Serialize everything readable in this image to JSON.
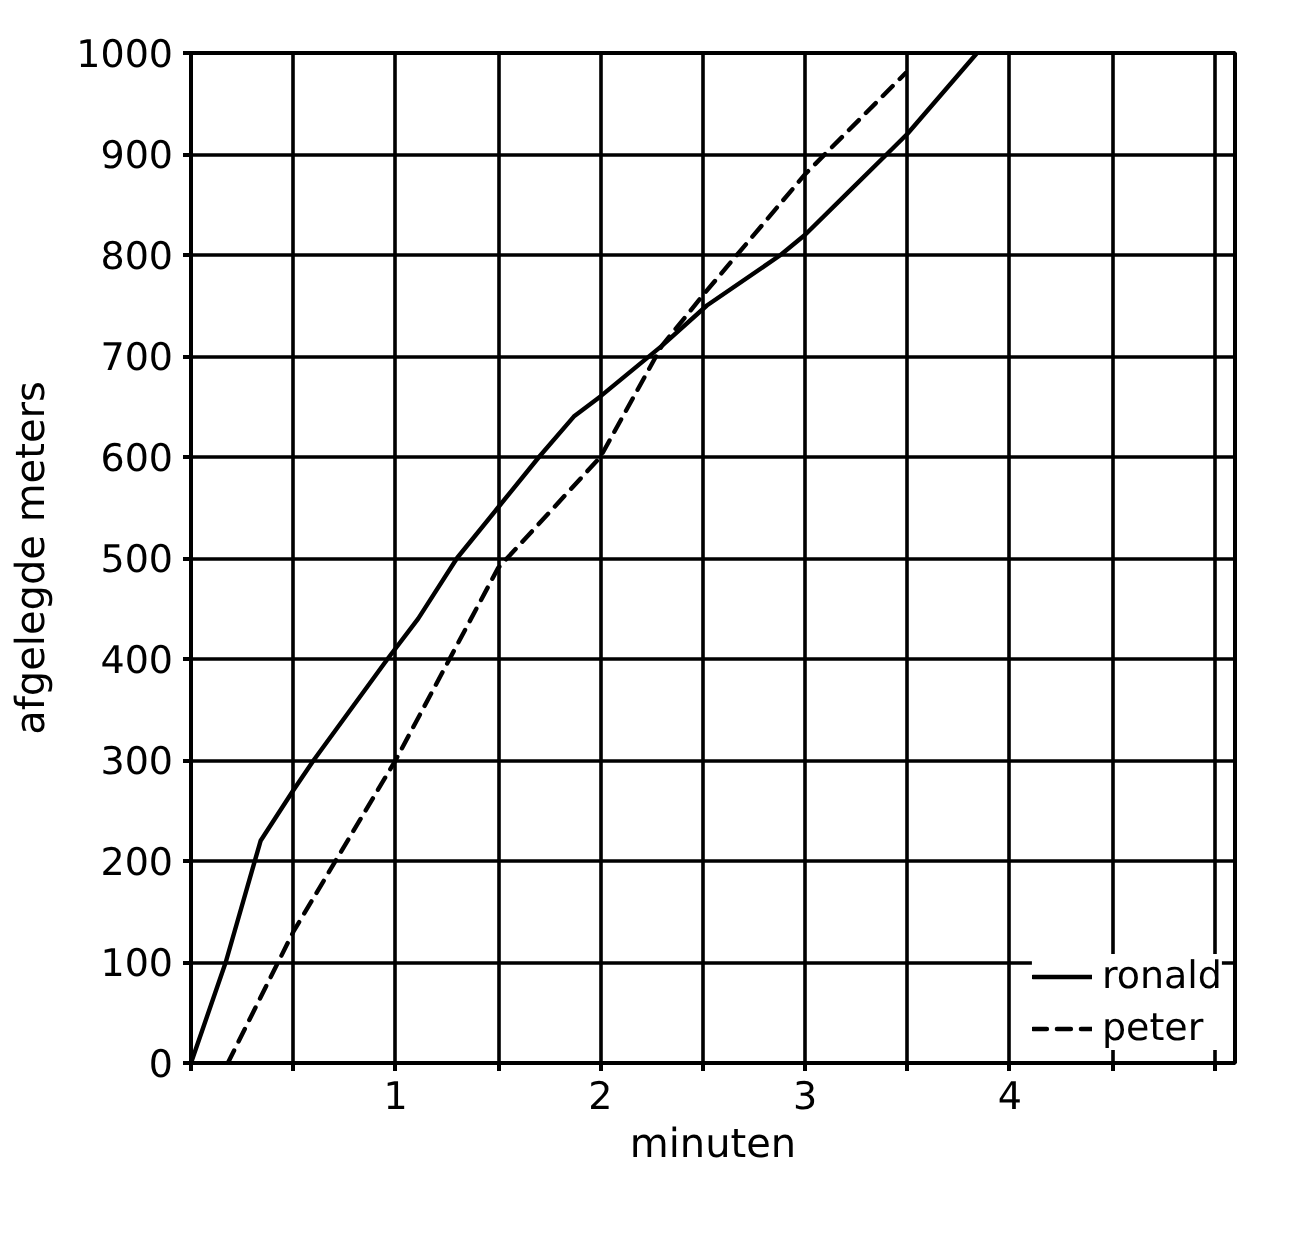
{
  "chart_data": {
    "type": "line",
    "xlabel": "minuten",
    "ylabel": "afgelegde meters",
    "xlim": [
      0,
      5.1
    ],
    "ylim": [
      0,
      1000
    ],
    "xticks": [
      {
        "value": 0,
        "label": null
      },
      {
        "value": 0.5,
        "label": null
      },
      1,
      {
        "value": 1.5,
        "label": null
      },
      2,
      {
        "value": 2.5,
        "label": null
      },
      3,
      {
        "value": 3.5,
        "label": null
      },
      4,
      {
        "value": 4.5,
        "label": null
      },
      {
        "value": 5,
        "label": null
      }
    ],
    "yticks": [
      0,
      100,
      200,
      300,
      400,
      500,
      600,
      700,
      800,
      900,
      1000
    ],
    "grid": true,
    "legend": "bottom right",
    "marker": "none",
    "series": [
      {
        "name": "ronald",
        "color": "#000000",
        "line_style": "solid",
        "x": [
          0,
          0.17,
          0.34,
          0.5,
          0.6,
          0.96,
          1.11,
          1.3,
          1.5,
          1.7,
          1.87,
          2.0,
          2.3,
          2.52,
          2.88,
          3.0,
          3.2,
          3.4,
          3.5,
          3.84
        ],
        "values": [
          0,
          100,
          220,
          270,
          300,
          400,
          440,
          500,
          550,
          600,
          640,
          660,
          710,
          750,
          800,
          820,
          860,
          900,
          920,
          1000
        ]
      },
      {
        "name": "peter",
        "color": "#000000",
        "line_style": "dashed",
        "x": [
          0.18,
          0.5,
          1.0,
          1.5,
          2.0,
          2.3,
          2.5,
          3.0,
          3.49
        ],
        "values": [
          0,
          130,
          300,
          490,
          600,
          710,
          760,
          880,
          980
        ]
      }
    ]
  }
}
